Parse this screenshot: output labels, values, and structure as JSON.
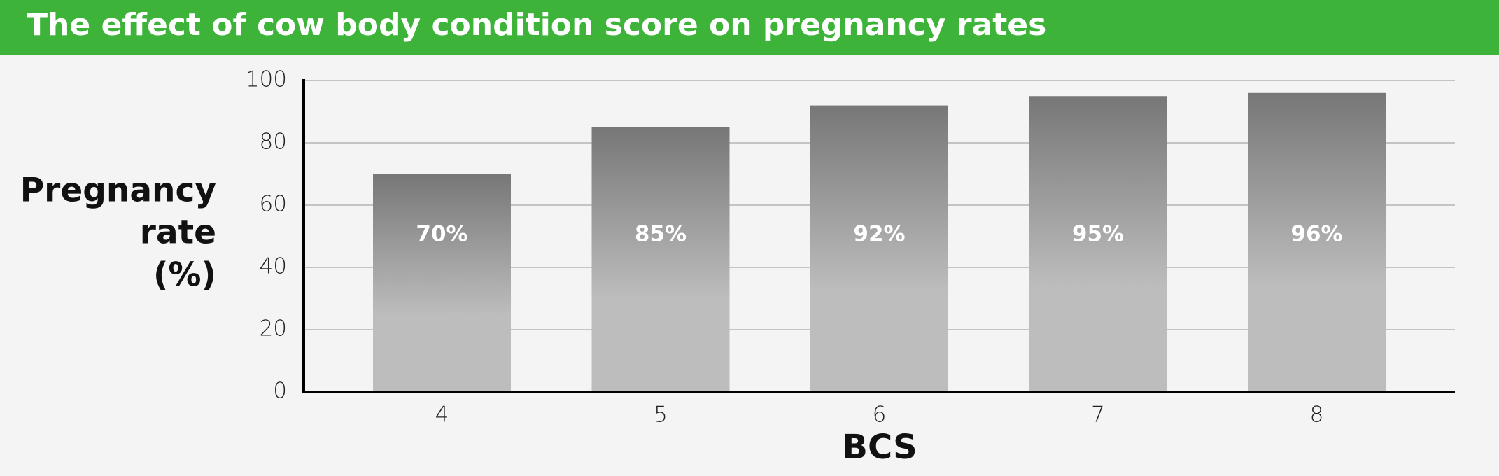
{
  "chart_data": {
    "type": "bar",
    "title": "The effect of cow body condition score on pregnancy rates",
    "y_label": [
      "Pregnancy",
      "rate",
      "(%)"
    ],
    "x_label": "BCS",
    "categories": [
      "4",
      "5",
      "6",
      "7",
      "8"
    ],
    "values": [
      70,
      85,
      92,
      95,
      96
    ],
    "value_labels": [
      "70%",
      "85%",
      "92%",
      "95%",
      "96%"
    ],
    "ylim": [
      0,
      100
    ],
    "yticks": [
      0,
      20,
      40,
      60,
      80,
      100
    ],
    "grid": true,
    "color": [
      "#777777",
      "#bdbdbd"
    ],
    "header_color": "#3db33a"
  }
}
